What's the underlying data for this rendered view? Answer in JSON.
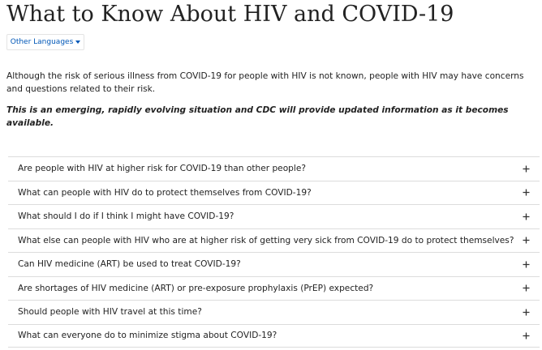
{
  "header": {
    "title": "What to Know About HIV and COVID-19",
    "languages_button": "Other Languages"
  },
  "intro": "Although the risk of serious illness from COVID-19 for people with HIV is not known, people with HIV may have concerns and questions related to their risk.",
  "notice": "This is an emerging, rapidly evolving situation and CDC will provide updated information as it becomes available.",
  "faq": {
    "items": [
      "Are people with HIV at higher risk for COVID-19 than other people?",
      "What can people with HIV do to protect themselves from COVID-19?",
      "What should I do if I think I might have COVID-19?",
      "What else can people with HIV who are at higher risk of getting very sick from COVID-19 do to protect themselves?",
      "Can HIV medicine (ART) be used to treat COVID-19?",
      "Are shortages of HIV medicine (ART) or pre-exposure prophylaxis (PrEP) expected?",
      "Should people with HIV travel at this time?",
      "What can everyone do to minimize stigma about COVID-19?"
    ]
  }
}
